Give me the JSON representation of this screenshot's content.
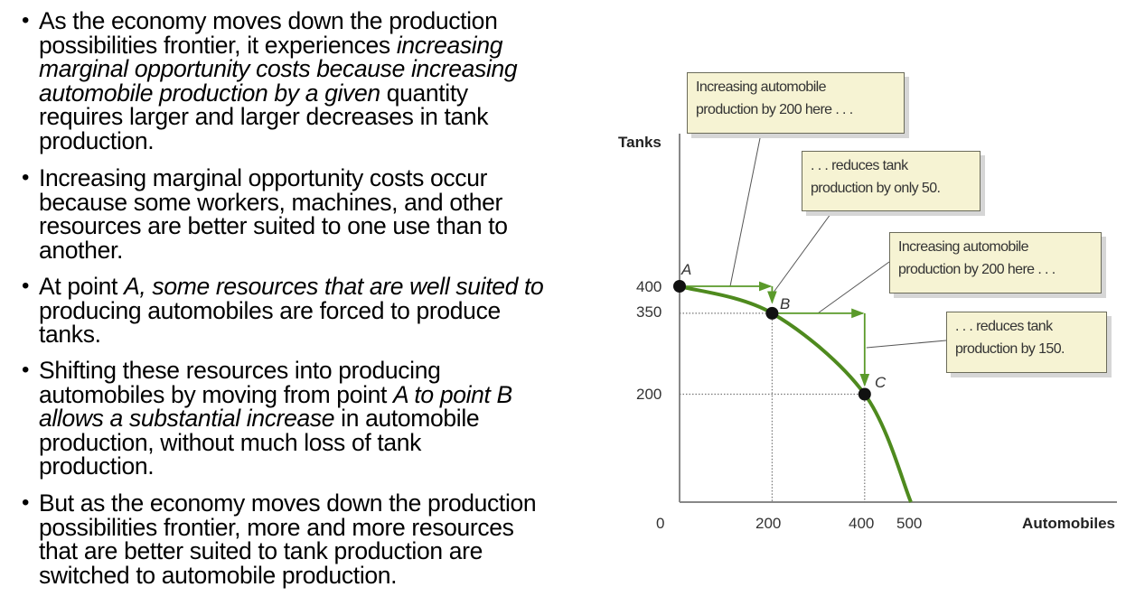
{
  "bullets": [
    {
      "lines": [
        [
          {
            "t": "As the economy moves down the production"
          }
        ],
        [
          {
            "t": "possibilities frontier, it experiences "
          },
          {
            "t": "increasing",
            "i": true
          }
        ],
        [
          {
            "t": "marginal opportunity costs because increasing",
            "i": true
          }
        ],
        [
          {
            "t": "automobile production by a given",
            "i": true
          },
          {
            "t": " quantity"
          }
        ],
        [
          {
            "t": "requires larger and larger decreases in tank"
          }
        ],
        [
          {
            "t": "production."
          }
        ]
      ]
    },
    {
      "lines": [
        [
          {
            "t": "Increasing marginal opportunity costs occur"
          }
        ],
        [
          {
            "t": "because some workers, machines, and other"
          }
        ],
        [
          {
            "t": "resources are better suited to one use than to"
          }
        ],
        [
          {
            "t": "another."
          }
        ]
      ]
    },
    {
      "lines": [
        [
          {
            "t": "At point "
          },
          {
            "t": "A, some resources that are well suited to",
            "i": true
          }
        ],
        [
          {
            "t": "producing automobiles are forced to produce"
          }
        ],
        [
          {
            "t": "tanks."
          }
        ]
      ]
    },
    {
      "lines": [
        [
          {
            "t": "Shifting these resources into producing"
          }
        ],
        [
          {
            "t": "automobiles by moving from point "
          },
          {
            "t": "A to point B",
            "i": true
          }
        ],
        [
          {
            "t": "allows a substantial increase",
            "i": true
          },
          {
            "t": " in automobile"
          }
        ],
        [
          {
            "t": "production, without much loss of tank"
          }
        ],
        [
          {
            "t": "production."
          }
        ]
      ]
    },
    {
      "lines": [
        [
          {
            "t": "But as the economy moves down the production"
          }
        ],
        [
          {
            "t": "possibilities frontier, more and more resources"
          }
        ],
        [
          {
            "t": "that are better suited to tank production are"
          }
        ],
        [
          {
            "t": "switched to automobile production."
          }
        ]
      ]
    }
  ],
  "bullet_symbol": "•",
  "chart_data": {
    "type": "line",
    "title": "",
    "xlabel": "Automobiles",
    "ylabel": "Tanks",
    "xlim": [
      0,
      500
    ],
    "ylim": [
      0,
      400
    ],
    "x_ticks": [
      "0",
      "200",
      "400",
      "500"
    ],
    "y_ticks": [
      "400",
      "350",
      "200"
    ],
    "series": [
      {
        "name": "Production possibilities frontier",
        "x": [
          0,
          200,
          400,
          500
        ],
        "y": [
          400,
          350,
          200,
          0
        ],
        "color": "#4e8a1e"
      }
    ],
    "points": [
      {
        "label": "A",
        "x": 0,
        "y": 400
      },
      {
        "label": "B",
        "x": 200,
        "y": 350
      },
      {
        "label": "C",
        "x": 400,
        "y": 200
      }
    ],
    "annotations": [
      {
        "line1": "Increasing automobile",
        "line2": "production by 200 here . . ."
      },
      {
        "line1": ". . . reduces tank",
        "line2": "production by only 50."
      },
      {
        "line1": "Increasing automobile",
        "line2": "production by 200 here . . ."
      },
      {
        "line1": ". . . reduces tank",
        "line2": "production by 150."
      }
    ],
    "grid": false
  }
}
